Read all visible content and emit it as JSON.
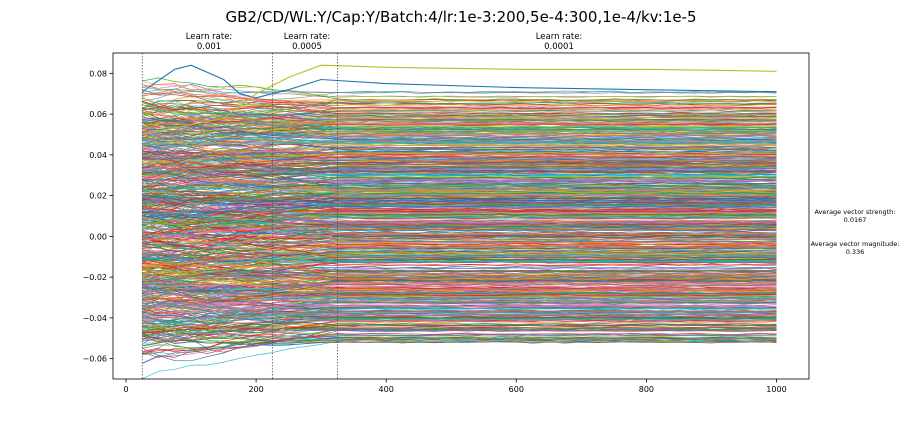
{
  "chart_data": {
    "type": "line",
    "title": "GB2/CD/WL:Y/Cap:Y/Batch:4/lr:1e-3:200,5e-4:300,1e-4/kv:1e-5",
    "xlabel": "",
    "ylabel": "",
    "xlim": [
      -20,
      1050
    ],
    "ylim": [
      -0.07,
      0.09
    ],
    "x_ticks": [
      0,
      200,
      400,
      600,
      800,
      1000
    ],
    "y_ticks": [
      -0.06,
      -0.04,
      -0.02,
      0.0,
      0.02,
      0.04,
      0.06,
      0.08
    ],
    "x_tick_labels": [
      "0",
      "200",
      "400",
      "600",
      "800",
      "1000"
    ],
    "y_tick_labels": [
      "−0.06",
      "−0.04",
      "−0.02",
      "0.00",
      "0.02",
      "0.04",
      "0.06",
      "0.08"
    ],
    "grid": false,
    "legend": "none",
    "x_range": [
      25,
      1000
    ],
    "num_series_approx": 768,
    "value_spread": [
      -0.062,
      0.084
    ],
    "vlines": [
      {
        "x": 25,
        "label_line1": "",
        "label_line2": ""
      },
      {
        "x": 225,
        "label_line1": "Learn rate:",
        "label_line2": "0.001"
      },
      {
        "x": 325,
        "label_line1": "Learn rate:",
        "label_line2": "0.0005"
      },
      {
        "x": 1000,
        "label_line1": "Learn rate:",
        "label_line2": "0.0001"
      }
    ],
    "highlighted_series": [
      {
        "color": "#1f77b4",
        "x": [
          25,
          75,
          100,
          150,
          175,
          200,
          250,
          300,
          400,
          600,
          800,
          1000
        ],
        "y": [
          0.071,
          0.082,
          0.084,
          0.077,
          0.07,
          0.068,
          0.072,
          0.077,
          0.075,
          0.073,
          0.072,
          0.071
        ]
      },
      {
        "color": "#bcbd22",
        "x": [
          25,
          150,
          200,
          250,
          300,
          400,
          600,
          800,
          1000
        ],
        "y": [
          0.05,
          0.058,
          0.07,
          0.078,
          0.084,
          0.083,
          0.082,
          0.082,
          0.081
        ]
      }
    ],
    "palette": [
      "#1f77b4",
      "#ff7f0e",
      "#2ca02c",
      "#d62728",
      "#9467bd",
      "#8c564b",
      "#e377c2",
      "#7f7f7f",
      "#bcbd22",
      "#17becf"
    ]
  },
  "side_info": {
    "strength_label": "Average vector strength:",
    "strength_value": "0.0167",
    "magnitude_label": "Average vector magnitude:",
    "magnitude_value": "0.336"
  }
}
